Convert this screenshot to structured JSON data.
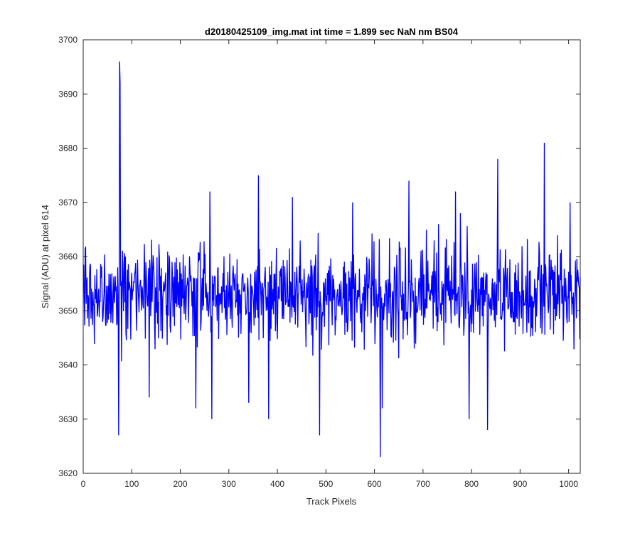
{
  "chart_data": {
    "type": "line",
    "title": "d20180425109_img.mat int time = 1.899 sec  NaN nm BS04",
    "xlabel": "Track Pixels",
    "ylabel": "Signal (ADU) at pixel 614",
    "xlim": [
      0,
      1024
    ],
    "ylim": [
      3620,
      3700
    ],
    "xticks": [
      0,
      100,
      200,
      300,
      400,
      500,
      600,
      700,
      800,
      900,
      1000
    ],
    "yticks": [
      3620,
      3630,
      3640,
      3650,
      3660,
      3670,
      3680,
      3690,
      3700
    ],
    "xtick_labels": [
      "0",
      "100",
      "200",
      "300",
      "400",
      "500",
      "600",
      "700",
      "800",
      "900",
      "1000"
    ],
    "ytick_labels": [
      "3620",
      "3630",
      "3640",
      "3650",
      "3660",
      "3670",
      "3680",
      "3690",
      "3700"
    ],
    "grid": false,
    "series_color": "#0000ff",
    "baseline_mean": 3653,
    "noise_range": [
      3640,
      3666
    ],
    "notable_points": [
      {
        "x": 72,
        "y": 3627
      },
      {
        "x": 74,
        "y": 3696
      },
      {
        "x": 75,
        "y": 3692
      },
      {
        "x": 135,
        "y": 3634
      },
      {
        "x": 231,
        "y": 3632
      },
      {
        "x": 260,
        "y": 3672
      },
      {
        "x": 264,
        "y": 3630
      },
      {
        "x": 340,
        "y": 3633
      },
      {
        "x": 360,
        "y": 3675
      },
      {
        "x": 381,
        "y": 3630
      },
      {
        "x": 430,
        "y": 3671
      },
      {
        "x": 486,
        "y": 3627
      },
      {
        "x": 554,
        "y": 3670
      },
      {
        "x": 611,
        "y": 3623
      },
      {
        "x": 615,
        "y": 3632
      },
      {
        "x": 670,
        "y": 3674
      },
      {
        "x": 766,
        "y": 3672
      },
      {
        "x": 776,
        "y": 3668
      },
      {
        "x": 794,
        "y": 3630
      },
      {
        "x": 832,
        "y": 3628
      },
      {
        "x": 853,
        "y": 3678
      },
      {
        "x": 949,
        "y": 3681
      },
      {
        "x": 1002,
        "y": 3670
      }
    ]
  }
}
